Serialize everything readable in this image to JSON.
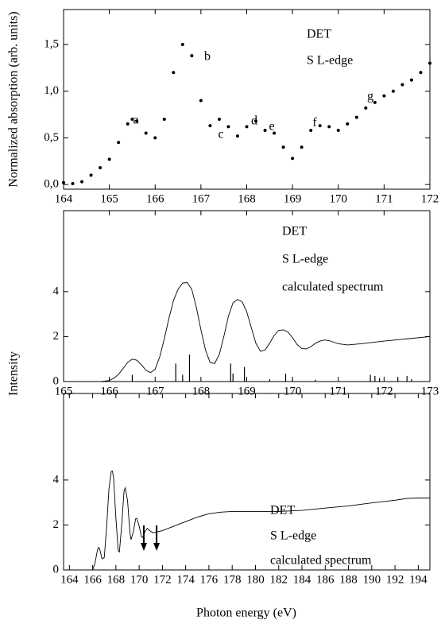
{
  "chart_data": [
    {
      "type": "scatter",
      "ylabel": "Normalized absorption (arb. units)",
      "labels": [
        "DET",
        "S L-edge"
      ],
      "annotations": [
        "a",
        "b",
        "c",
        "d",
        "e",
        "f",
        "g"
      ],
      "xlim": [
        164,
        172
      ],
      "xticks": [
        164,
        165,
        166,
        167,
        168,
        169,
        170,
        171,
        172
      ],
      "ylim": [
        -0.05,
        1.875
      ],
      "yticks": [
        {
          "value": 0,
          "label": "0,0"
        },
        {
          "value": 0.5,
          "label": "0,5"
        },
        {
          "value": 1,
          "label": "1,0"
        },
        {
          "value": 1.5,
          "label": "1,5"
        }
      ],
      "color": "#000000",
      "x": [
        164.0,
        164.2,
        164.4,
        164.6,
        164.8,
        165.0,
        165.2,
        165.4,
        165.5,
        165.6,
        165.8,
        166.0,
        166.2,
        166.4,
        166.6,
        166.8,
        167.0,
        167.2,
        167.4,
        167.6,
        167.8,
        168.0,
        168.2,
        168.4,
        168.6,
        168.8,
        169.0,
        169.2,
        169.4,
        169.6,
        169.8,
        170.0,
        170.2,
        170.4,
        170.6,
        170.8,
        171.0,
        171.2,
        171.4,
        171.6,
        171.8,
        172.0
      ],
      "values": [
        0.02,
        0.01,
        0.03,
        0.1,
        0.18,
        0.27,
        0.45,
        0.65,
        0.7,
        0.68,
        0.55,
        0.5,
        0.7,
        1.2,
        1.5,
        1.38,
        0.9,
        0.63,
        0.7,
        0.62,
        0.52,
        0.62,
        0.68,
        0.58,
        0.55,
        0.4,
        0.28,
        0.4,
        0.58,
        0.63,
        0.62,
        0.58,
        0.65,
        0.72,
        0.82,
        0.88,
        0.95,
        1.0,
        1.07,
        1.12,
        1.2,
        1.3
      ]
    },
    {
      "type": "line",
      "ylabel": "Intensity",
      "labels": [
        "DET",
        "S L-edge",
        "calculated spectrum"
      ],
      "xlim": [
        165,
        173
      ],
      "xticks": [
        165,
        166,
        167,
        168,
        169,
        170,
        171,
        172,
        173
      ],
      "ylim": [
        0,
        7.6
      ],
      "yticks": [
        0,
        2,
        4
      ],
      "color": "#000000",
      "x": [
        165.0,
        165.8,
        165.9,
        166.0,
        166.1,
        166.2,
        166.3,
        166.4,
        166.5,
        166.6,
        166.7,
        166.8,
        166.9,
        167.0,
        167.1,
        167.2,
        167.3,
        167.4,
        167.5,
        167.6,
        167.7,
        167.8,
        167.9,
        168.0,
        168.1,
        168.2,
        168.3,
        168.4,
        168.5,
        168.6,
        168.7,
        168.8,
        168.9,
        169.0,
        169.1,
        169.2,
        169.3,
        169.4,
        169.5,
        169.6,
        169.7,
        169.8,
        169.9,
        170.0,
        170.1,
        170.2,
        170.3,
        170.4,
        170.5,
        170.6,
        170.7,
        170.8,
        170.9,
        171.0,
        171.2,
        171.5,
        172.0,
        172.5,
        173.0
      ],
      "values": [
        0,
        0,
        0.02,
        0.05,
        0.15,
        0.32,
        0.58,
        0.85,
        1.0,
        0.95,
        0.75,
        0.5,
        0.4,
        0.55,
        1.1,
        1.9,
        2.8,
        3.6,
        4.1,
        4.38,
        4.4,
        4.1,
        3.3,
        2.3,
        1.4,
        0.85,
        0.8,
        1.2,
        2.0,
        2.9,
        3.5,
        3.65,
        3.55,
        3.1,
        2.4,
        1.7,
        1.35,
        1.4,
        1.7,
        2.05,
        2.28,
        2.3,
        2.2,
        1.95,
        1.65,
        1.47,
        1.45,
        1.55,
        1.7,
        1.8,
        1.85,
        1.82,
        1.75,
        1.68,
        1.63,
        1.68,
        1.8,
        1.9,
        2.0
      ],
      "sticks": {
        "x": [
          166.5,
          167.45,
          167.6,
          167.75,
          168.65,
          168.7,
          168.95,
          169.5,
          169.85,
          170.0,
          170.5,
          171.7,
          171.8,
          171.9,
          172.3,
          172.5,
          172.6
        ],
        "values": [
          0.3,
          0.8,
          0.3,
          1.2,
          0.8,
          0.35,
          0.65,
          0.1,
          0.35,
          0.1,
          0.08,
          0.3,
          0.25,
          0.15,
          0.2,
          0.25,
          0.1
        ]
      }
    },
    {
      "type": "line",
      "xlabel": "Photon energy (eV)",
      "labels": [
        "DET",
        "S L-edge",
        "calculated spectrum"
      ],
      "xlim": [
        163.5,
        195
      ],
      "xticks": [
        164,
        166,
        168,
        170,
        172,
        174,
        176,
        178,
        180,
        182,
        184,
        186,
        188,
        190,
        192,
        194
      ],
      "ylim": [
        0,
        7.85
      ],
      "yticks": [
        0,
        2,
        4
      ],
      "color": "#000000",
      "x": [
        164,
        166.0,
        166.2,
        166.4,
        166.5,
        166.6,
        166.8,
        167.0,
        167.2,
        167.4,
        167.6,
        167.7,
        167.8,
        168.0,
        168.2,
        168.3,
        168.5,
        168.7,
        168.8,
        169.0,
        169.2,
        169.3,
        169.5,
        169.7,
        169.8,
        170.0,
        170.2,
        170.3,
        170.5,
        170.7,
        170.9,
        171.2,
        172,
        173,
        174,
        175,
        176,
        177,
        178,
        180,
        182,
        184,
        186,
        188,
        190,
        192,
        193,
        194,
        195
      ],
      "values": [
        0,
        0,
        0.3,
        0.85,
        1.0,
        0.95,
        0.5,
        0.55,
        1.9,
        3.6,
        4.38,
        4.4,
        4.1,
        2.3,
        0.85,
        0.8,
        2.0,
        3.5,
        3.65,
        3.1,
        1.7,
        1.35,
        1.7,
        2.28,
        2.3,
        1.95,
        1.47,
        1.45,
        1.7,
        1.85,
        1.75,
        1.65,
        1.75,
        1.95,
        2.15,
        2.35,
        2.5,
        2.57,
        2.6,
        2.6,
        2.6,
        2.65,
        2.75,
        2.85,
        2.98,
        3.1,
        3.18,
        3.2,
        3.2
      ],
      "arrows": [
        170.4,
        171.5
      ]
    }
  ]
}
